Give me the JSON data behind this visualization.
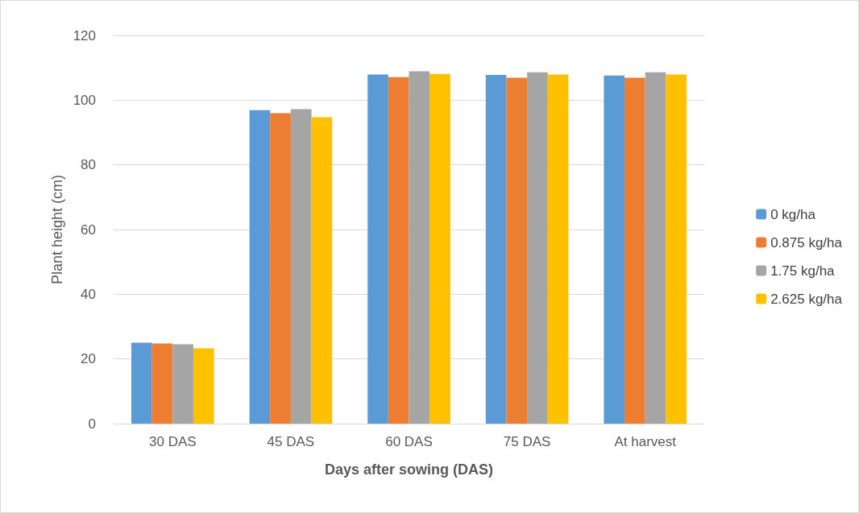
{
  "chart_data": {
    "type": "bar",
    "xlabel": "Days after sowing (DAS)",
    "ylabel": "Plant height (cm)",
    "categories": [
      "30 DAS",
      "45 DAS",
      "60 DAS",
      "75 DAS",
      "At harvest"
    ],
    "series": [
      {
        "name": "0 kg/ha",
        "color": "#5b9bd5",
        "values": [
          25.0,
          96.9,
          107.9,
          107.8,
          107.6
        ]
      },
      {
        "name": "0.875 kg/ha",
        "color": "#ed7d31",
        "values": [
          24.8,
          96.0,
          107.1,
          106.9,
          106.9
        ]
      },
      {
        "name": "1.75 kg/ha",
        "color": "#a5a5a5",
        "values": [
          24.5,
          97.2,
          108.9,
          108.6,
          108.6
        ]
      },
      {
        "name": "2.625 kg/ha",
        "color": "#ffc000",
        "values": [
          23.3,
          94.7,
          108.1,
          107.9,
          107.9
        ]
      }
    ],
    "ylim": [
      0,
      120
    ],
    "yticks": [
      0,
      20,
      40,
      60,
      80,
      100,
      120
    ],
    "grid": "y",
    "legend": "right"
  }
}
